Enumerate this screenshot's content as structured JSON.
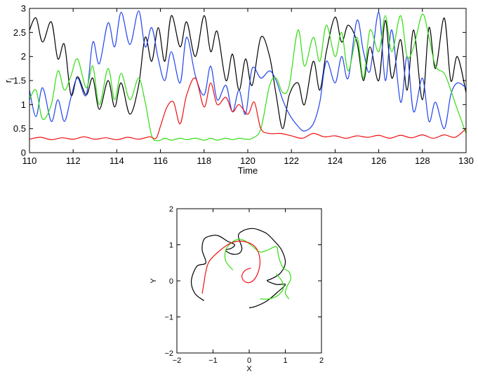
{
  "chart_data": [
    {
      "type": "line",
      "title": "",
      "xlabel": "Time",
      "ylabel": "r",
      "ylabel_subscript": "i",
      "xlim": [
        110,
        130
      ],
      "ylim": [
        0,
        3
      ],
      "xticks": [
        110,
        112,
        114,
        116,
        118,
        120,
        122,
        124,
        126,
        128,
        130
      ],
      "yticks": [
        0,
        0.5,
        1,
        1.5,
        2,
        2.5,
        3
      ],
      "grid": false,
      "series": [
        {
          "color": "#000000",
          "x": [
            110,
            110.3,
            110.6,
            111.0,
            111.3,
            111.6,
            111.9,
            112.2,
            112.6,
            112.9,
            113.2,
            113.6,
            113.9,
            114.2,
            114.6,
            115.0,
            115.3,
            115.6,
            115.9,
            116.2,
            116.5,
            116.9,
            117.2,
            117.6,
            118.0,
            118.3,
            118.6,
            119.0,
            119.3,
            119.6,
            119.9,
            120.2,
            120.6,
            121.0,
            121.3,
            121.6,
            121.9,
            122.3,
            122.6,
            123.0,
            123.3,
            123.6,
            124.0,
            124.3,
            124.6,
            125.0,
            125.3,
            125.6,
            126.0,
            126.3,
            126.6,
            127.0,
            127.3,
            127.6,
            128.0,
            128.3,
            128.6,
            129.0,
            129.3,
            129.6,
            130.0
          ],
          "y": [
            2.55,
            2.8,
            2.3,
            2.72,
            1.95,
            2.25,
            1.2,
            1.58,
            1.2,
            1.55,
            0.9,
            1.5,
            0.95,
            1.45,
            0.8,
            1.4,
            2.4,
            1.9,
            2.6,
            1.9,
            2.85,
            2.2,
            2.72,
            2.0,
            2.85,
            2.1,
            2.52,
            1.5,
            2.05,
            1.3,
            1.95,
            1.4,
            2.4,
            2.0,
            1.2,
            0.5,
            1.2,
            1.45,
            1.0,
            1.9,
            1.3,
            2.1,
            2.82,
            2.3,
            2.65,
            2.3,
            1.5,
            2.2,
            1.5,
            2.75,
            1.55,
            2.35,
            1.3,
            2.55,
            1.1,
            2.6,
            1.75,
            2.8,
            1.5,
            2.0,
            1.25
          ]
        },
        {
          "color": "#2244ee",
          "x": [
            110,
            110.3,
            110.6,
            111.0,
            111.3,
            111.6,
            111.9,
            112.2,
            112.6,
            112.9,
            113.2,
            113.6,
            113.9,
            114.2,
            114.6,
            115.0,
            115.3,
            115.6,
            115.9,
            116.2,
            116.5,
            116.9,
            117.2,
            117.6,
            118.0,
            118.3,
            118.6,
            119.0,
            119.3,
            119.6,
            119.9,
            120.2,
            120.6,
            121.0,
            121.3,
            121.6,
            121.9,
            122.3,
            122.6,
            123.0,
            123.3,
            123.6,
            124.0,
            124.3,
            124.6,
            125.0,
            125.3,
            125.6,
            126.0,
            126.3,
            126.6,
            127.0,
            127.3,
            127.6,
            128.0,
            128.3,
            128.6,
            129.0,
            129.3,
            129.6,
            130.0
          ],
          "y": [
            1.3,
            0.75,
            1.35,
            0.65,
            1.1,
            0.65,
            1.15,
            1.55,
            1.2,
            2.3,
            1.85,
            2.7,
            2.2,
            2.92,
            2.25,
            2.95,
            2.2,
            2.6,
            1.95,
            1.5,
            2.1,
            1.45,
            2.4,
            1.6,
            1.2,
            1.8,
            1.1,
            1.4,
            0.85,
            1.3,
            0.8,
            1.75,
            1.55,
            1.7,
            1.5,
            1.1,
            0.8,
            0.55,
            0.45,
            0.6,
            1.05,
            1.9,
            1.45,
            2.0,
            1.55,
            2.75,
            2.1,
            1.7,
            2.92,
            1.5,
            2.55,
            1.05,
            2.0,
            0.85,
            1.55,
            0.65,
            1.05,
            0.5,
            1.2,
            1.45,
            1.35
          ]
        },
        {
          "color": "#33dd11",
          "x": [
            110,
            110.3,
            110.6,
            111.0,
            111.3,
            111.6,
            111.9,
            112.2,
            112.6,
            112.9,
            113.2,
            113.6,
            113.9,
            114.2,
            114.6,
            115.0,
            115.3,
            115.6,
            115.9,
            116.2,
            116.5,
            116.9,
            117.2,
            117.6,
            118.0,
            118.3,
            118.6,
            119.0,
            119.3,
            119.6,
            119.9,
            120.2,
            120.6,
            121.0,
            121.3,
            121.6,
            121.9,
            122.3,
            122.6,
            123.0,
            123.3,
            123.6,
            124.0,
            124.3,
            124.6,
            125.0,
            125.3,
            125.6,
            126.0,
            126.3,
            126.6,
            127.0,
            127.3,
            127.6,
            128.0,
            128.3,
            128.6,
            129.0,
            129.3,
            129.6,
            130.0
          ],
          "y": [
            1.1,
            1.3,
            0.7,
            1.0,
            1.7,
            1.3,
            1.6,
            1.95,
            1.35,
            1.8,
            1.0,
            1.75,
            1.1,
            1.65,
            1.1,
            1.55,
            1.05,
            0.35,
            0.25,
            0.3,
            0.26,
            0.3,
            0.27,
            0.3,
            0.26,
            0.3,
            0.26,
            0.3,
            0.27,
            0.3,
            0.28,
            0.3,
            0.5,
            1.4,
            1.55,
            1.25,
            1.4,
            2.55,
            1.8,
            2.4,
            1.9,
            2.65,
            2.0,
            2.5,
            1.7,
            2.4,
            1.55,
            2.55,
            2.1,
            2.85,
            2.1,
            2.85,
            2.0,
            2.2,
            2.88,
            2.4,
            1.8,
            1.65,
            1.3,
            0.9,
            0.4
          ]
        },
        {
          "color": "#ee1111",
          "x": [
            110,
            110.5,
            111.0,
            111.5,
            112.0,
            112.5,
            113.0,
            113.5,
            114.0,
            114.5,
            115.0,
            115.5,
            115.8,
            116.0,
            116.3,
            116.6,
            116.9,
            117.2,
            117.6,
            118.0,
            118.3,
            118.6,
            119.0,
            119.3,
            119.6,
            120.0,
            120.3,
            120.6,
            121.0,
            121.5,
            122.0,
            122.5,
            123.0,
            123.5,
            124.0,
            124.5,
            125.0,
            125.5,
            126.0,
            126.5,
            127.0,
            127.5,
            128.0,
            128.5,
            129.0,
            129.5,
            130.0
          ],
          "y": [
            0.28,
            0.32,
            0.27,
            0.31,
            0.28,
            0.33,
            0.28,
            0.31,
            0.27,
            0.32,
            0.28,
            0.33,
            0.3,
            0.55,
            0.95,
            1.05,
            0.6,
            1.2,
            1.55,
            0.95,
            1.45,
            1.0,
            1.15,
            0.85,
            1.0,
            0.8,
            1.05,
            0.5,
            0.4,
            0.4,
            0.35,
            0.3,
            0.4,
            0.33,
            0.35,
            0.3,
            0.35,
            0.32,
            0.36,
            0.3,
            0.36,
            0.31,
            0.37,
            0.3,
            0.37,
            0.32,
            0.5
          ]
        }
      ]
    },
    {
      "type": "line",
      "title": "",
      "xlabel": "X",
      "ylabel": "Y",
      "xlim": [
        -2,
        2
      ],
      "ylim": [
        -2,
        2
      ],
      "xticks": [
        -2,
        -1,
        0,
        1,
        2
      ],
      "yticks": [
        -2,
        -1,
        0,
        1,
        2
      ],
      "grid": false,
      "series": [
        {
          "color": "#000000",
          "x": [
            -1.25,
            -1.5,
            -1.6,
            -1.45,
            -1.2,
            -1.3,
            -1.25,
            -1.05,
            -0.85,
            -0.6,
            -0.4,
            -0.5,
            -0.65,
            -0.5,
            -0.3,
            -0.2,
            -0.3,
            -0.15,
            0.1,
            0.3,
            0.5,
            0.7,
            0.9,
            1.0,
            0.85,
            0.6,
            0.5,
            0.75,
            1.0,
            0.8,
            0.5,
            0.2,
            0.0
          ],
          "y": [
            -0.55,
            -0.35,
            0.0,
            0.4,
            0.5,
            0.85,
            1.15,
            1.25,
            1.25,
            1.1,
            1.0,
            0.9,
            0.85,
            0.75,
            0.75,
            0.9,
            1.25,
            1.4,
            1.45,
            1.4,
            1.3,
            1.1,
            0.85,
            0.5,
            0.2,
            0.05,
            0.0,
            -0.1,
            -0.1,
            -0.3,
            -0.55,
            -0.7,
            -0.75
          ]
        },
        {
          "color": "#33dd11",
          "x": [
            -0.45,
            -0.65,
            -0.65,
            -0.5,
            -0.3,
            -0.1,
            0.1,
            0.3,
            0.5,
            0.75,
            0.8,
            0.85,
            0.95,
            1.1,
            1.15,
            1.05,
            1.0,
            1.1
          ],
          "y": [
            0.3,
            0.55,
            0.85,
            1.05,
            1.15,
            1.1,
            0.95,
            0.8,
            0.85,
            0.95,
            0.75,
            0.55,
            0.35,
            0.25,
            0.05,
            -0.15,
            -0.35,
            -0.5
          ]
        },
        {
          "color": "#ee1111",
          "x": [
            -1.3,
            -1.25,
            -1.2,
            -1.1,
            -0.8,
            -0.5,
            -0.2,
            0.1,
            0.25,
            0.3,
            0.25,
            0.15,
            0.0,
            -0.15,
            -0.2,
            -0.1,
            0.05
          ],
          "y": [
            -0.35,
            -0.05,
            0.25,
            0.55,
            0.85,
            1.05,
            1.1,
            1.0,
            0.8,
            0.5,
            0.25,
            0.05,
            -0.05,
            0.0,
            0.15,
            0.3,
            0.35
          ]
        },
        {
          "color": "#33dd11",
          "x": [
            0.3,
            0.55,
            0.8,
            0.95,
            0.9,
            0.75
          ],
          "y": [
            -0.5,
            -0.5,
            -0.4,
            -0.2,
            0.0,
            0.2
          ]
        }
      ]
    }
  ]
}
